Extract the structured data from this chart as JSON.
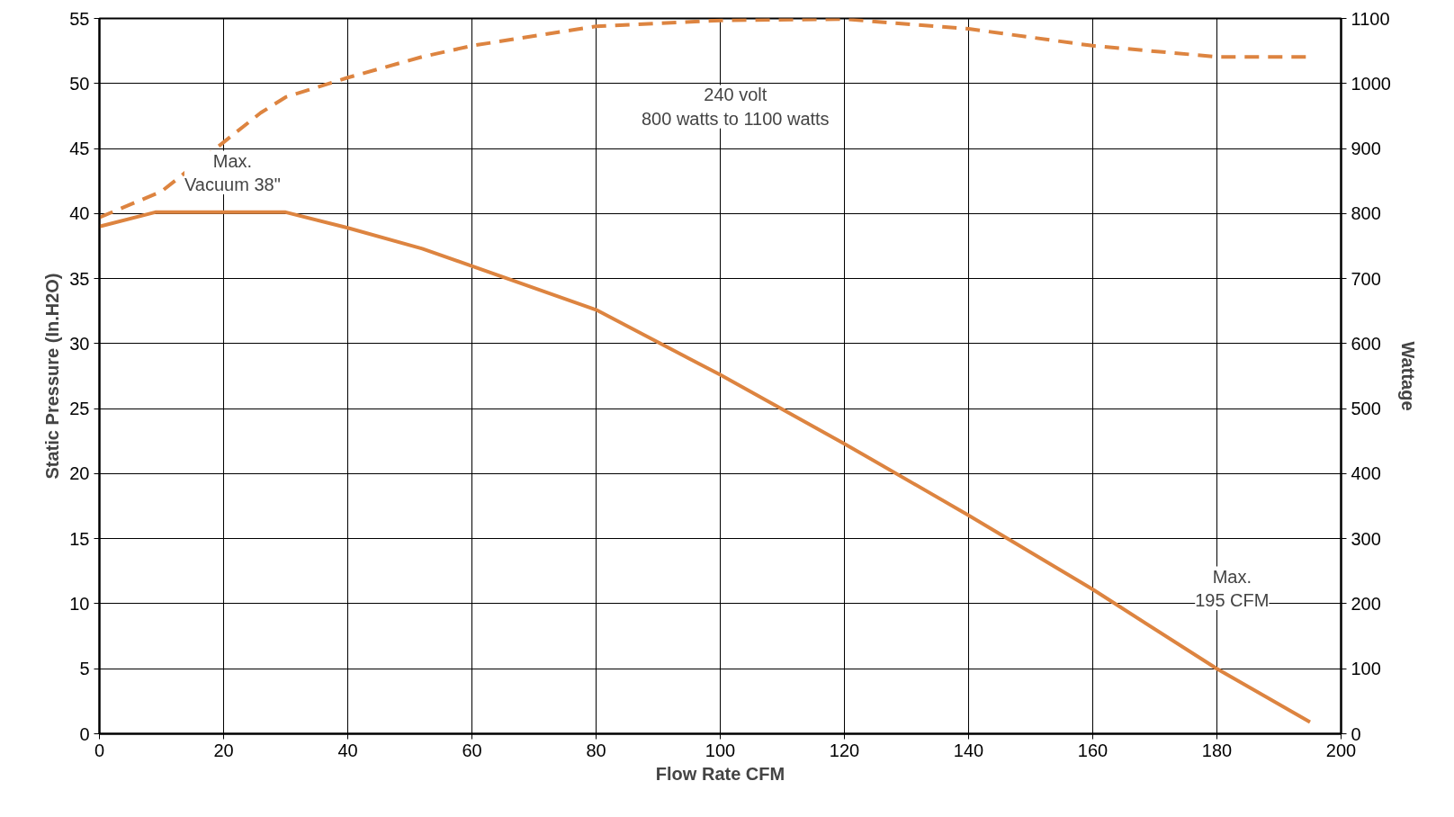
{
  "chart_data": {
    "type": "line",
    "xlabel": "Flow Rate CFM",
    "ylabel": "Static Pressure (In.H2O)",
    "y2label": "Wattage",
    "xlim": [
      0,
      200
    ],
    "xticks": [
      0,
      20,
      40,
      60,
      80,
      100,
      120,
      140,
      160,
      180,
      200
    ],
    "ylim": [
      0,
      55
    ],
    "yticks": [
      0,
      5,
      10,
      15,
      20,
      25,
      30,
      35,
      40,
      45,
      50,
      55
    ],
    "y2lim": [
      0,
      1100
    ],
    "y2ticks": [
      0,
      100,
      200,
      300,
      400,
      500,
      600,
      700,
      800,
      900,
      1000,
      1100
    ],
    "grid": true,
    "marker": "none",
    "series": [
      {
        "color": "#dd8440",
        "line_style": "solid",
        "x": [
          0,
          9,
          30,
          40,
          52,
          80,
          100,
          120,
          140,
          160,
          180,
          195
        ],
        "values": [
          39,
          40.1,
          40.1,
          38.9,
          37.3,
          32.6,
          27.6,
          22.3,
          16.8,
          11.1,
          5,
          0.9
        ]
      },
      {
        "color": "#dd8440",
        "line_style": "dashed",
        "axis": "y2",
        "x": [
          0,
          10,
          26,
          30,
          40,
          52,
          60,
          80,
          100,
          120,
          140,
          160,
          180,
          195
        ],
        "values": [
          794,
          834,
          955,
          979,
          1009,
          1041,
          1058,
          1088,
          1097,
          1099,
          1084,
          1058,
          1041,
          1041
        ]
      }
    ],
    "annotations": [
      "Max.\nVacuum 38\"",
      "240 volt\n800 watts to 1100 watts",
      "Max.\n195 CFM"
    ]
  }
}
